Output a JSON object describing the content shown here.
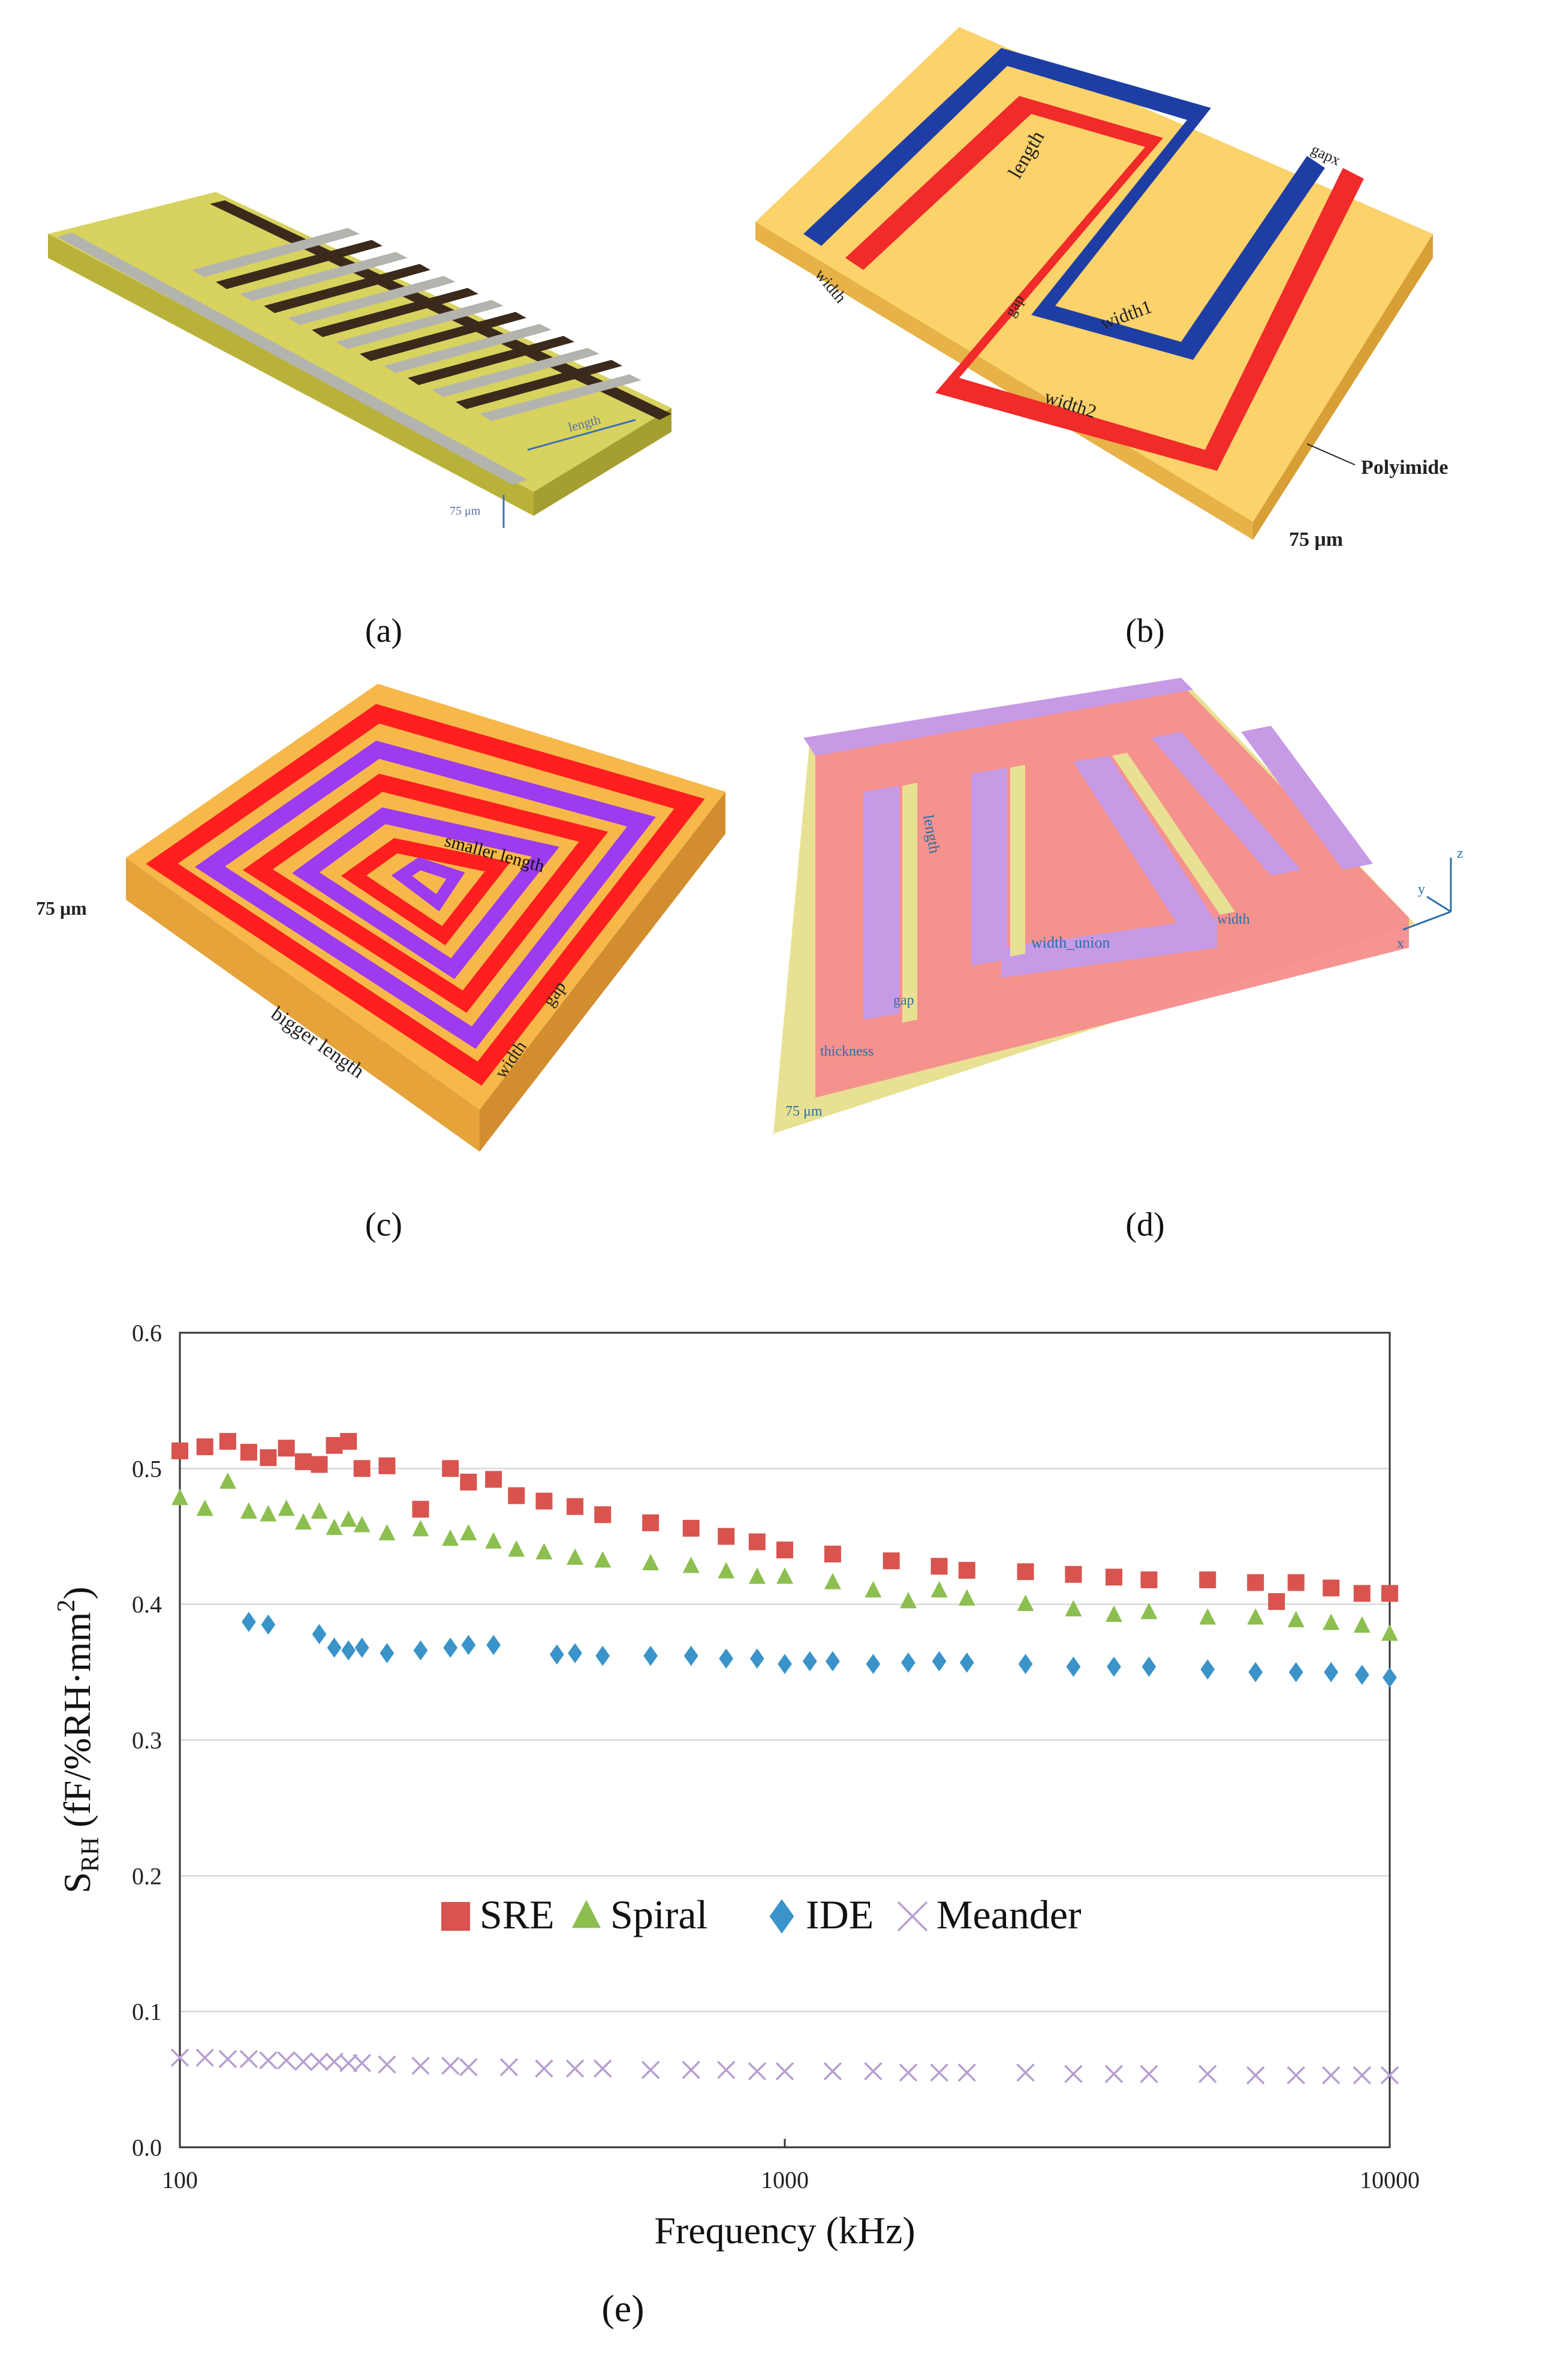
{
  "panels": {
    "a": {
      "caption": "(a)",
      "labels": {
        "length": "length",
        "thickness": "75 μm"
      }
    },
    "b": {
      "caption": "(b)",
      "labels": {
        "length": "length",
        "width": "width",
        "width1": "width1",
        "width2": "width2",
        "gap": "gap",
        "gapx": "gapx",
        "material": "Polyimide",
        "thickness": "75 μm"
      }
    },
    "c": {
      "caption": "(c)",
      "labels": {
        "smaller_length": "smaller length",
        "bigger_length": "bigger length",
        "gap": "gap",
        "width": "width",
        "thickness": "75 μm"
      }
    },
    "d": {
      "caption": "(d)",
      "labels": {
        "length": "length",
        "width_union": "width_union",
        "width": "width",
        "gap": "gap",
        "thickness_label": "thickness",
        "thickness": "75 μm",
        "axis_x": "x",
        "axis_y": "y",
        "axis_z": "z"
      }
    }
  },
  "chart_caption": "(e)",
  "chart_data": {
    "type": "scatter",
    "xscale": "log",
    "xlim": [
      100,
      10000
    ],
    "ylim": [
      0.0,
      0.6
    ],
    "xticks": [
      "100",
      "1000",
      "10000"
    ],
    "yticks": [
      "0.0",
      "0.1",
      "0.2",
      "0.3",
      "0.4",
      "0.5",
      "0.6"
    ],
    "xlabel": "Frequency (kHz)",
    "ylabel_main": "S",
    "ylabel_sub": "RH",
    "ylabel_rest": " (fF/%RH·mm",
    "ylabel_sup": "2",
    "ylabel_end": ")",
    "legend_position": "center",
    "series": [
      {
        "name": "SRE",
        "marker": "square",
        "color": "#d9534f",
        "x": [
          100,
          110,
          120,
          130,
          140,
          150,
          160,
          170,
          180,
          190,
          200,
          220,
          250,
          280,
          300,
          330,
          360,
          400,
          450,
          500,
          600,
          700,
          800,
          900,
          1000,
          1200,
          1500,
          1800,
          2000,
          2500,
          3000,
          3500,
          4000,
          5000,
          6000,
          6500,
          7000,
          8000,
          9000,
          10000
        ],
        "y": [
          0.513,
          0.516,
          0.52,
          0.512,
          0.508,
          0.515,
          0.505,
          0.503,
          0.517,
          0.52,
          0.5,
          0.502,
          0.47,
          0.5,
          0.49,
          0.492,
          0.48,
          0.476,
          0.472,
          0.466,
          0.46,
          0.456,
          0.45,
          0.446,
          0.44,
          0.437,
          0.432,
          0.428,
          0.425,
          0.424,
          0.422,
          0.42,
          0.418,
          0.418,
          0.416,
          0.402,
          0.416,
          0.412,
          0.408,
          0.408
        ]
      },
      {
        "name": "Spiral",
        "marker": "triangle",
        "color": "#8cbf4f",
        "x": [
          100,
          110,
          120,
          130,
          140,
          150,
          160,
          170,
          180,
          190,
          200,
          220,
          250,
          280,
          300,
          330,
          360,
          400,
          450,
          500,
          600,
          700,
          800,
          900,
          1000,
          1200,
          1400,
          1600,
          1800,
          2000,
          2500,
          3000,
          3500,
          4000,
          5000,
          6000,
          7000,
          8000,
          9000,
          10000
        ],
        "y": [
          0.478,
          0.47,
          0.49,
          0.468,
          0.466,
          0.47,
          0.46,
          0.468,
          0.456,
          0.462,
          0.458,
          0.452,
          0.455,
          0.448,
          0.452,
          0.446,
          0.44,
          0.438,
          0.434,
          0.432,
          0.43,
          0.428,
          0.424,
          0.42,
          0.42,
          0.416,
          0.41,
          0.402,
          0.41,
          0.404,
          0.4,
          0.396,
          0.392,
          0.394,
          0.39,
          0.39,
          0.388,
          0.386,
          0.384,
          0.378
        ]
      },
      {
        "name": "IDE",
        "marker": "diamond",
        "color": "#3a93c9",
        "x": [
          130,
          140,
          170,
          180,
          190,
          200,
          220,
          250,
          280,
          300,
          330,
          420,
          450,
          500,
          600,
          700,
          800,
          900,
          1000,
          1100,
          1200,
          1400,
          1600,
          1800,
          2000,
          2500,
          3000,
          3500,
          4000,
          5000,
          6000,
          7000,
          8000,
          9000,
          10000
        ],
        "y": [
          0.387,
          0.385,
          0.378,
          0.368,
          0.366,
          0.368,
          0.364,
          0.366,
          0.368,
          0.37,
          0.37,
          0.363,
          0.364,
          0.362,
          0.362,
          0.362,
          0.36,
          0.36,
          0.356,
          0.358,
          0.358,
          0.356,
          0.357,
          0.358,
          0.357,
          0.356,
          0.354,
          0.354,
          0.354,
          0.352,
          0.35,
          0.35,
          0.35,
          0.348,
          0.346
        ]
      },
      {
        "name": "Meander",
        "marker": "x",
        "color": "#b79fd1",
        "x": [
          100,
          110,
          120,
          130,
          140,
          150,
          160,
          170,
          180,
          190,
          200,
          220,
          250,
          280,
          300,
          350,
          400,
          450,
          500,
          600,
          700,
          800,
          900,
          1000,
          1200,
          1400,
          1600,
          1800,
          2000,
          2500,
          3000,
          3500,
          4000,
          5000,
          6000,
          7000,
          8000,
          9000,
          10000
        ],
        "y": [
          0.066,
          0.066,
          0.065,
          0.065,
          0.064,
          0.064,
          0.063,
          0.063,
          0.063,
          0.062,
          0.062,
          0.061,
          0.06,
          0.06,
          0.059,
          0.059,
          0.058,
          0.058,
          0.058,
          0.057,
          0.057,
          0.057,
          0.056,
          0.056,
          0.056,
          0.056,
          0.055,
          0.055,
          0.055,
          0.055,
          0.054,
          0.054,
          0.054,
          0.054,
          0.053,
          0.053,
          0.053,
          0.053,
          0.053
        ]
      }
    ]
  }
}
